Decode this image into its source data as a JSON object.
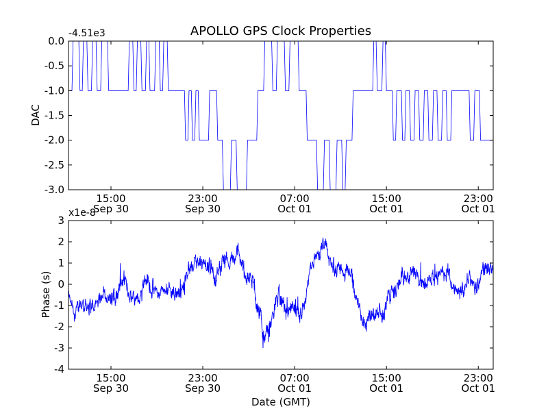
{
  "chart_data": [
    {
      "type": "line",
      "title": "APOLLO GPS Clock Properties",
      "ylabel": "DAC",
      "xlabel": "",
      "y_offset_label": "-4.51e3",
      "line_color": "#0000ff",
      "grid": false,
      "ylim": [
        -3.0,
        0.0
      ],
      "xlim_hours": [
        11.3,
        48.3
      ],
      "y_ticks": [
        {
          "value": 0.0,
          "label": "0.0"
        },
        {
          "value": -0.5,
          "label": "-0.5"
        },
        {
          "value": -1.0,
          "label": "-1.0"
        },
        {
          "value": -1.5,
          "label": "-1.5"
        },
        {
          "value": -2.0,
          "label": "-2.0"
        },
        {
          "value": -2.5,
          "label": "-2.5"
        },
        {
          "value": -3.0,
          "label": "-3.0"
        }
      ],
      "x_ticks": [
        {
          "hour": 15,
          "time": "15:00",
          "date": "Sep 30"
        },
        {
          "hour": 23,
          "time": "23:00",
          "date": "Sep 30"
        },
        {
          "hour": 31,
          "time": "07:00",
          "date": "Oct 01"
        },
        {
          "hour": 39,
          "time": "15:00",
          "date": "Oct 01"
        },
        {
          "hour": 47,
          "time": "23:00",
          "date": "Oct 01"
        }
      ],
      "series": [
        {
          "step_points": [
            [
              11.3,
              -1.0
            ],
            [
              11.6,
              -1.0
            ],
            [
              11.7,
              0.0
            ],
            [
              12.2,
              0.0
            ],
            [
              12.3,
              -1.0
            ],
            [
              12.5,
              -1.0
            ],
            [
              12.6,
              0.0
            ],
            [
              12.9,
              0.0
            ],
            [
              13.0,
              -1.0
            ],
            [
              13.3,
              -1.0
            ],
            [
              13.4,
              0.0
            ],
            [
              13.7,
              0.0
            ],
            [
              13.8,
              -1.0
            ],
            [
              14.1,
              -1.0
            ],
            [
              14.2,
              0.0
            ],
            [
              14.7,
              0.0
            ],
            [
              14.8,
              -1.0
            ],
            [
              16.5,
              -1.0
            ],
            [
              16.6,
              0.0
            ],
            [
              16.9,
              0.0
            ],
            [
              17.0,
              -1.0
            ],
            [
              17.2,
              -1.0
            ],
            [
              17.3,
              0.0
            ],
            [
              17.6,
              0.0
            ],
            [
              17.7,
              -1.0
            ],
            [
              18.0,
              -1.0
            ],
            [
              18.1,
              0.0
            ],
            [
              18.3,
              0.0
            ],
            [
              18.4,
              -1.0
            ],
            [
              18.8,
              -1.0
            ],
            [
              18.9,
              0.0
            ],
            [
              19.2,
              0.0
            ],
            [
              19.3,
              -1.0
            ],
            [
              19.5,
              -1.0
            ],
            [
              19.6,
              0.0
            ],
            [
              19.9,
              0.0
            ],
            [
              20.0,
              -1.0
            ],
            [
              21.4,
              -1.0
            ],
            [
              21.5,
              -2.0
            ],
            [
              21.7,
              -2.0
            ],
            [
              21.8,
              -1.0
            ],
            [
              22.0,
              -1.0
            ],
            [
              22.1,
              -2.0
            ],
            [
              22.3,
              -2.0
            ],
            [
              22.4,
              -1.0
            ],
            [
              22.6,
              -1.0
            ],
            [
              22.7,
              -2.0
            ],
            [
              23.5,
              -2.0
            ],
            [
              23.6,
              -1.0
            ],
            [
              24.2,
              -1.0
            ],
            [
              24.3,
              -2.0
            ],
            [
              24.7,
              -2.0
            ],
            [
              24.8,
              -3.0
            ],
            [
              25.4,
              -3.0
            ],
            [
              25.5,
              -2.0
            ],
            [
              25.9,
              -2.0
            ],
            [
              26.0,
              -3.0
            ],
            [
              26.8,
              -3.0
            ],
            [
              26.9,
              -2.0
            ],
            [
              27.7,
              -2.0
            ],
            [
              27.8,
              -1.0
            ],
            [
              28.3,
              -1.0
            ],
            [
              28.4,
              0.0
            ],
            [
              29.0,
              0.0
            ],
            [
              29.1,
              -1.0
            ],
            [
              29.4,
              -1.0
            ],
            [
              29.5,
              0.0
            ],
            [
              30.1,
              0.0
            ],
            [
              30.2,
              -1.0
            ],
            [
              30.5,
              -1.0
            ],
            [
              30.6,
              0.0
            ],
            [
              31.3,
              0.0
            ],
            [
              31.4,
              -1.0
            ],
            [
              32.0,
              -1.0
            ],
            [
              32.1,
              -2.0
            ],
            [
              32.9,
              -2.0
            ],
            [
              33.0,
              -3.0
            ],
            [
              33.5,
              -3.0
            ],
            [
              33.6,
              -2.0
            ],
            [
              34.0,
              -2.0
            ],
            [
              34.1,
              -3.0
            ],
            [
              34.6,
              -3.0
            ],
            [
              34.7,
              -2.0
            ],
            [
              35.1,
              -2.0
            ],
            [
              35.2,
              -3.0
            ],
            [
              35.4,
              -3.0
            ],
            [
              35.5,
              -2.0
            ],
            [
              36.0,
              -2.0
            ],
            [
              36.1,
              -1.0
            ],
            [
              37.8,
              -1.0
            ],
            [
              37.9,
              0.0
            ],
            [
              38.1,
              0.0
            ],
            [
              38.2,
              -1.0
            ],
            [
              38.6,
              -1.0
            ],
            [
              38.7,
              0.0
            ],
            [
              38.9,
              0.0
            ],
            [
              39.0,
              -1.0
            ],
            [
              39.5,
              -1.0
            ],
            [
              39.6,
              -2.0
            ],
            [
              39.8,
              -2.0
            ],
            [
              39.9,
              -1.0
            ],
            [
              40.3,
              -1.0
            ],
            [
              40.4,
              -2.0
            ],
            [
              40.6,
              -2.0
            ],
            [
              40.7,
              -1.0
            ],
            [
              41.0,
              -1.0
            ],
            [
              41.1,
              -2.0
            ],
            [
              41.4,
              -2.0
            ],
            [
              41.5,
              -1.0
            ],
            [
              41.8,
              -1.0
            ],
            [
              41.9,
              -2.0
            ],
            [
              42.2,
              -2.0
            ],
            [
              42.3,
              -1.0
            ],
            [
              42.6,
              -1.0
            ],
            [
              42.7,
              -2.0
            ],
            [
              43.0,
              -2.0
            ],
            [
              43.1,
              -1.0
            ],
            [
              43.4,
              -1.0
            ],
            [
              43.5,
              -2.0
            ],
            [
              43.8,
              -2.0
            ],
            [
              43.9,
              -1.0
            ],
            [
              44.2,
              -1.0
            ],
            [
              44.3,
              -2.0
            ],
            [
              44.6,
              -2.0
            ],
            [
              44.7,
              -1.0
            ],
            [
              46.2,
              -1.0
            ],
            [
              46.3,
              -2.0
            ],
            [
              46.6,
              -2.0
            ],
            [
              46.7,
              -1.0
            ],
            [
              47.1,
              -1.0
            ],
            [
              47.2,
              -2.0
            ],
            [
              48.3,
              -2.0
            ]
          ]
        }
      ]
    },
    {
      "type": "line",
      "title": "",
      "ylabel": "Phase (s)",
      "xlabel": "Date (GMT)",
      "y_offset_label": "x1e-8",
      "line_color": "#0000ff",
      "grid": false,
      "ylim": [
        -4,
        3
      ],
      "xlim_hours": [
        11.3,
        48.3
      ],
      "y_ticks": [
        {
          "value": 3,
          "label": "3"
        },
        {
          "value": 2,
          "label": "2"
        },
        {
          "value": 1,
          "label": "1"
        },
        {
          "value": 0,
          "label": "0"
        },
        {
          "value": -1,
          "label": "-1"
        },
        {
          "value": -2,
          "label": "-2"
        },
        {
          "value": -3,
          "label": "-3"
        },
        {
          "value": -4,
          "label": "-4"
        }
      ],
      "x_ticks": [
        {
          "hour": 15,
          "time": "15:00",
          "date": "Sep 30"
        },
        {
          "hour": 23,
          "time": "23:00",
          "date": "Sep 30"
        },
        {
          "hour": 31,
          "time": "07:00",
          "date": "Oct 01"
        },
        {
          "hour": 39,
          "time": "15:00",
          "date": "Oct 01"
        },
        {
          "hour": 47,
          "time": "23:00",
          "date": "Oct 01"
        }
      ],
      "series": [
        {
          "trend_points": [
            [
              11.3,
              -0.6
            ],
            [
              11.8,
              -1.5
            ],
            [
              12.3,
              -0.9
            ],
            [
              13.0,
              -1.0
            ],
            [
              13.6,
              -1.1
            ],
            [
              14.3,
              -0.3
            ],
            [
              15.0,
              -0.8
            ],
            [
              15.6,
              -0.4
            ],
            [
              16.1,
              0.2
            ],
            [
              16.7,
              -0.6
            ],
            [
              17.4,
              -0.5
            ],
            [
              18.0,
              0.4
            ],
            [
              18.6,
              -0.2
            ],
            [
              19.2,
              -0.5
            ],
            [
              19.8,
              -0.1
            ],
            [
              20.5,
              -0.4
            ],
            [
              21.2,
              -0.3
            ],
            [
              21.7,
              0.6
            ],
            [
              22.3,
              1.0
            ],
            [
              23.0,
              0.8
            ],
            [
              23.6,
              0.9
            ],
            [
              24.2,
              0.3
            ],
            [
              24.8,
              1.3
            ],
            [
              25.5,
              1.1
            ],
            [
              26.0,
              1.6
            ],
            [
              26.6,
              0.6
            ],
            [
              27.3,
              0.2
            ],
            [
              27.8,
              -1.0
            ],
            [
              28.4,
              -2.7
            ],
            [
              29.0,
              -1.7
            ],
            [
              29.6,
              -0.4
            ],
            [
              30.1,
              -1.3
            ],
            [
              30.7,
              -1.1
            ],
            [
              31.3,
              -1.6
            ],
            [
              31.9,
              -0.8
            ],
            [
              32.4,
              0.9
            ],
            [
              33.0,
              1.3
            ],
            [
              33.6,
              1.8
            ],
            [
              34.1,
              1.0
            ],
            [
              34.7,
              0.7
            ],
            [
              35.3,
              0.6
            ],
            [
              35.9,
              0.5
            ],
            [
              36.5,
              -0.9
            ],
            [
              37.0,
              -1.8
            ],
            [
              37.6,
              -1.6
            ],
            [
              38.2,
              -1.3
            ],
            [
              38.7,
              -1.4
            ],
            [
              39.2,
              -0.5
            ],
            [
              39.8,
              -0.3
            ],
            [
              40.4,
              0.4
            ],
            [
              40.9,
              0.2
            ],
            [
              41.5,
              0.7
            ],
            [
              42.1,
              0.1
            ],
            [
              42.7,
              0.3
            ],
            [
              43.3,
              0.4
            ],
            [
              43.9,
              0.5
            ],
            [
              44.5,
              0.4
            ],
            [
              45.1,
              -0.2
            ],
            [
              45.6,
              -0.6
            ],
            [
              46.2,
              0.4
            ],
            [
              46.8,
              -0.2
            ],
            [
              47.5,
              0.8
            ],
            [
              48.3,
              0.7
            ]
          ],
          "noise_amplitude": 0.45
        }
      ]
    }
  ]
}
